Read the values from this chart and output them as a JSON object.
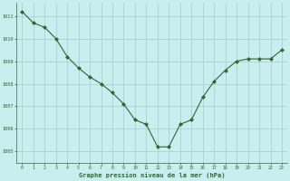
{
  "x": [
    0,
    1,
    2,
    3,
    4,
    5,
    6,
    7,
    8,
    9,
    10,
    11,
    12,
    13,
    14,
    15,
    16,
    17,
    18,
    19,
    20,
    21,
    22,
    23
  ],
  "y": [
    1011.2,
    1010.7,
    1010.5,
    1010.0,
    1009.2,
    1008.7,
    1008.3,
    1008.0,
    1007.6,
    1007.1,
    1006.4,
    1006.2,
    1005.2,
    1005.2,
    1006.2,
    1006.4,
    1007.4,
    1008.1,
    1008.6,
    1009.0,
    1009.1,
    1009.1,
    1009.1,
    1009.5
  ],
  "line_color": "#2d6a2d",
  "marker": "D",
  "marker_size": 2,
  "bg_color": "#c8eef0",
  "grid_color": "#a8cccc",
  "xlabel": "Graphe pression niveau de la mer (hPa)",
  "xlabel_color": "#2d6a2d",
  "tick_color": "#2d6a2d",
  "ylim": [
    1004.5,
    1011.6
  ],
  "xlim": [
    -0.5,
    23.5
  ],
  "yticks": [
    1005,
    1006,
    1007,
    1008,
    1009,
    1010,
    1011
  ],
  "xticks": [
    0,
    1,
    2,
    3,
    4,
    5,
    6,
    7,
    8,
    9,
    10,
    11,
    12,
    13,
    14,
    15,
    16,
    17,
    18,
    19,
    20,
    21,
    22,
    23
  ]
}
